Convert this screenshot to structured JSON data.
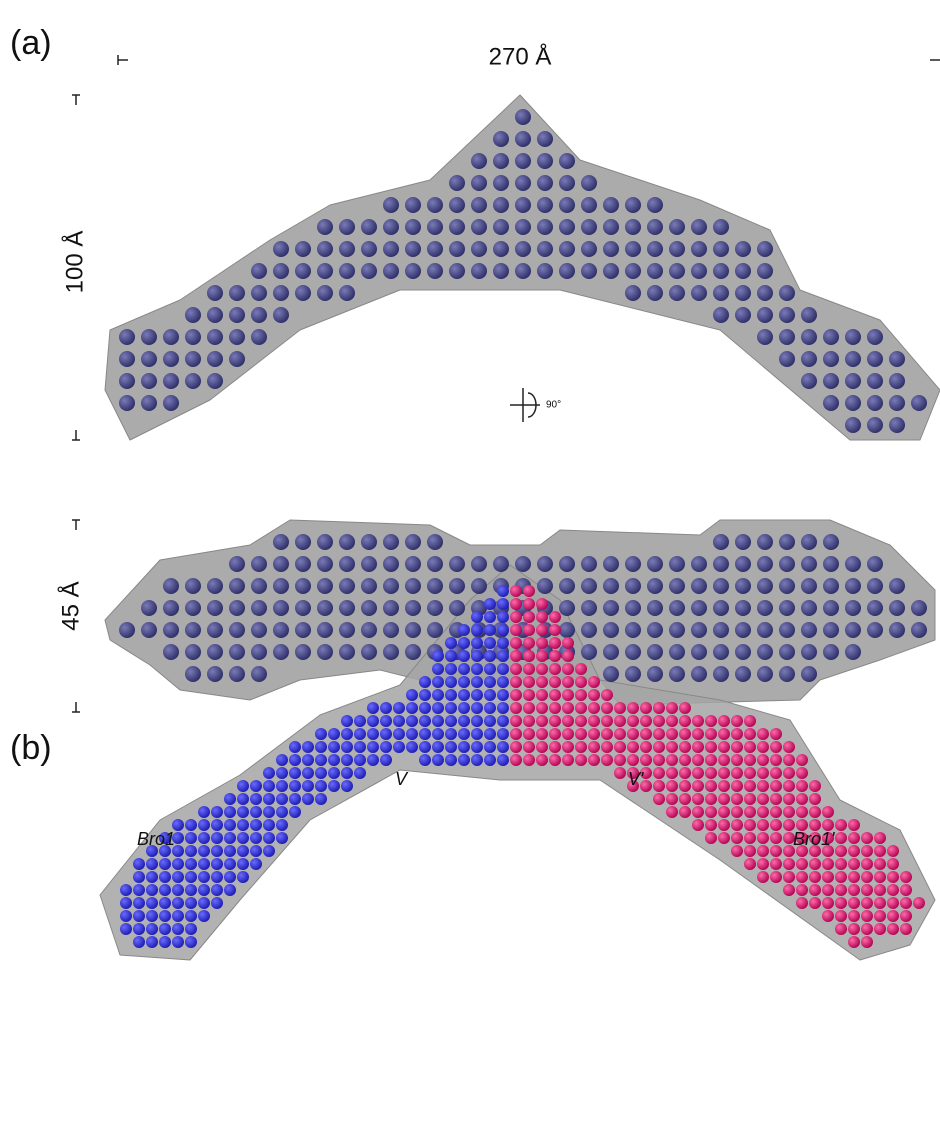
{
  "panel_a": {
    "label": "(a)",
    "width_label": "270 Å",
    "height_label": "100 Å",
    "rotation_label": "90°",
    "side_height_label": "45 Å"
  },
  "panel_b": {
    "label": "(b)",
    "domain_v": "V",
    "domain_v_prime": "V'",
    "domain_bro1": "Bro1",
    "domain_bro1_prime": "Bro1'"
  }
}
